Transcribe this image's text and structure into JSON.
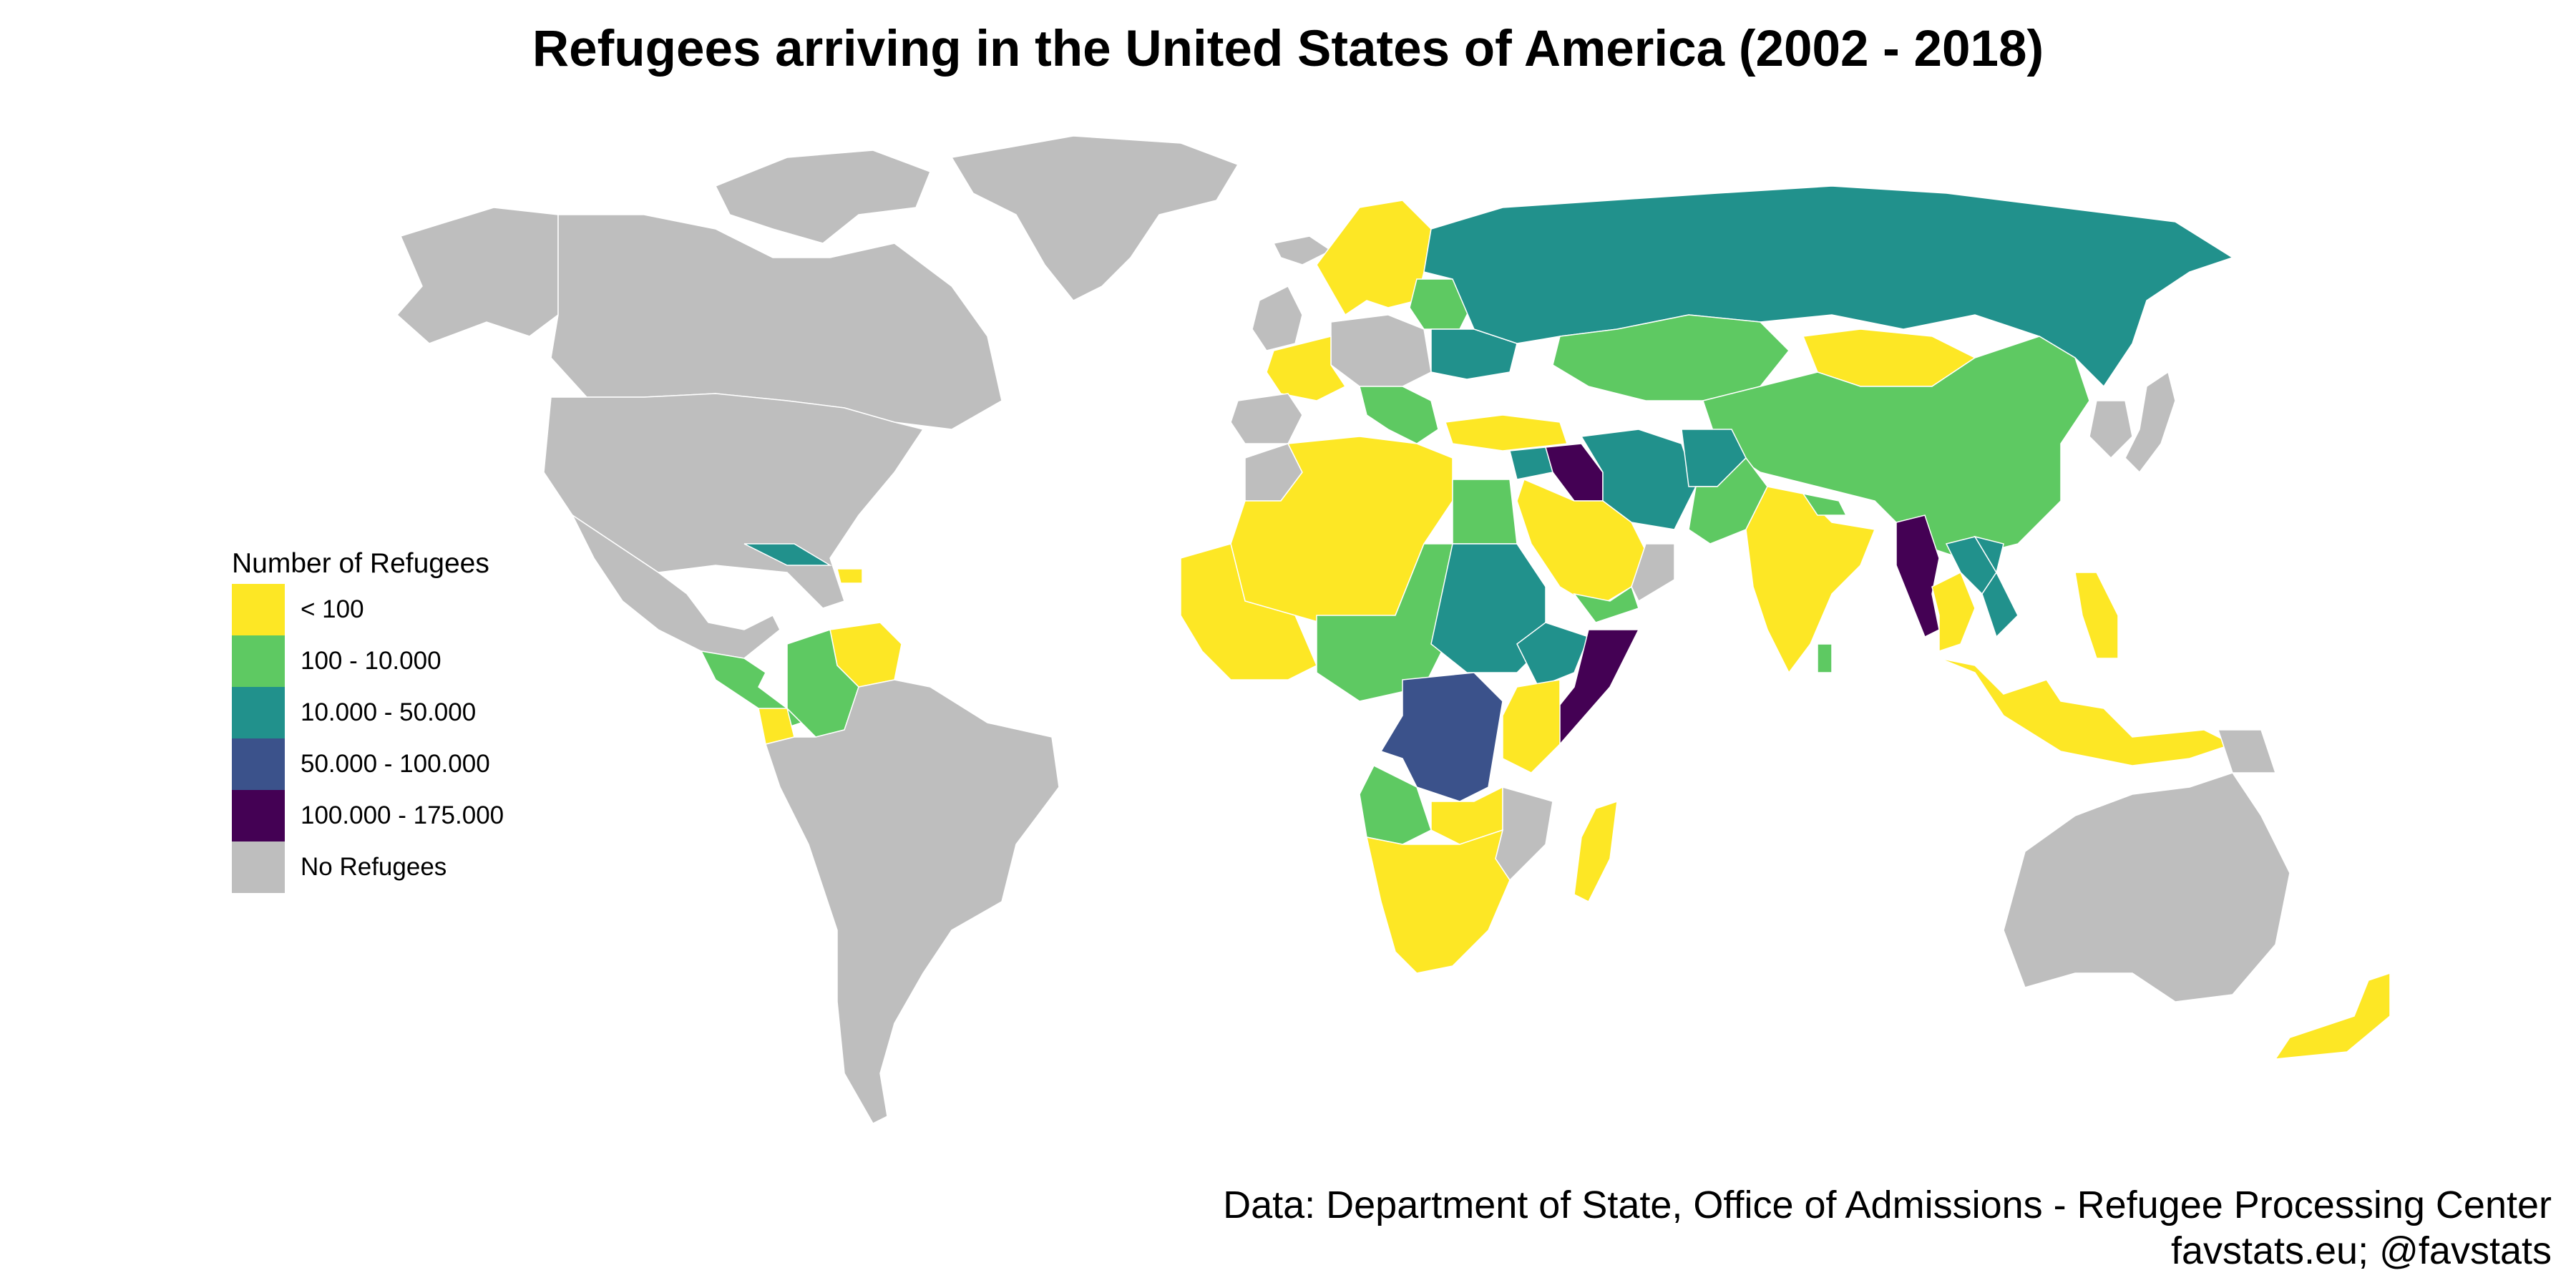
{
  "title": "Refugees arriving in the United States of America (2002 - 2018)",
  "legend": {
    "title": "Number of Refugees",
    "items": [
      {
        "label": "< 100",
        "color": "#fde725"
      },
      {
        "label": "100 - 10.000",
        "color": "#5ec962"
      },
      {
        "label": "10.000 - 50.000",
        "color": "#21918c"
      },
      {
        "label": "50.000 - 100.000",
        "color": "#3b528b"
      },
      {
        "label": "100.000 - 175.000",
        "color": "#440154"
      },
      {
        "label": "No Refugees",
        "color": "#bebebe"
      }
    ]
  },
  "caption": {
    "line1": "Data: Department of State, Office of Admissions - Refugee Processing Center",
    "line2": "favstats.eu; @favstats"
  },
  "regions": [
    {
      "name": "greenland",
      "class": "No Refugees"
    },
    {
      "name": "alaska",
      "class": "No Refugees"
    },
    {
      "name": "canada",
      "class": "No Refugees"
    },
    {
      "name": "arctic-islands",
      "class": "No Refugees"
    },
    {
      "name": "united-states",
      "class": "No Refugees"
    },
    {
      "name": "mexico",
      "class": "No Refugees"
    },
    {
      "name": "central-america",
      "class": "100 - 10.000"
    },
    {
      "name": "cuba",
      "class": "10.000 - 50.000"
    },
    {
      "name": "haiti",
      "class": "< 100"
    },
    {
      "name": "venezuela",
      "class": "< 100"
    },
    {
      "name": "colombia",
      "class": "100 - 10.000"
    },
    {
      "name": "ecuador",
      "class": "< 100"
    },
    {
      "name": "south-america",
      "class": "No Refugees"
    },
    {
      "name": "iceland",
      "class": "No Refugees"
    },
    {
      "name": "united-kingdom",
      "class": "No Refugees"
    },
    {
      "name": "scandinavia",
      "class": "< 100"
    },
    {
      "name": "baltics-belarus",
      "class": "100 - 10.000"
    },
    {
      "name": "western-europe",
      "class": "< 100"
    },
    {
      "name": "central-europe",
      "class": "No Refugees"
    },
    {
      "name": "iberia",
      "class": "No Refugees"
    },
    {
      "name": "balkans",
      "class": "100 - 10.000"
    },
    {
      "name": "ukraine",
      "class": "10.000 - 50.000"
    },
    {
      "name": "russia",
      "class": "10.000 - 50.000"
    },
    {
      "name": "kazakhstan",
      "class": "100 - 10.000"
    },
    {
      "name": "mongolia",
      "class": "< 100"
    },
    {
      "name": "china",
      "class": "100 - 10.000"
    },
    {
      "name": "turkey",
      "class": "< 100"
    },
    {
      "name": "syria",
      "class": "10.000 - 50.000"
    },
    {
      "name": "iraq",
      "class": "100.000 - 175.000"
    },
    {
      "name": "iran",
      "class": "10.000 - 50.000"
    },
    {
      "name": "afghanistan",
      "class": "10.000 - 50.000"
    },
    {
      "name": "pakistan",
      "class": "100 - 10.000"
    },
    {
      "name": "arabia",
      "class": "< 100"
    },
    {
      "name": "yemen",
      "class": "100 - 10.000"
    },
    {
      "name": "oman",
      "class": "No Refugees"
    },
    {
      "name": "india",
      "class": "< 100"
    },
    {
      "name": "nepal",
      "class": "100 - 10.000"
    },
    {
      "name": "sri-lanka",
      "class": "100 - 10.000"
    },
    {
      "name": "myanmar",
      "class": "100.000 - 175.000"
    },
    {
      "name": "laos",
      "class": "10.000 - 50.000"
    },
    {
      "name": "vietnam",
      "class": "10.000 - 50.000"
    },
    {
      "name": "thailand",
      "class": "< 100"
    },
    {
      "name": "korea",
      "class": "No Refugees"
    },
    {
      "name": "japan",
      "class": "No Refugees"
    },
    {
      "name": "philippines",
      "class": "< 100"
    },
    {
      "name": "indonesia",
      "class": "< 100"
    },
    {
      "name": "papua-new-guinea",
      "class": "No Refugees"
    },
    {
      "name": "australia",
      "class": "No Refugees"
    },
    {
      "name": "new-zealand",
      "class": "< 100"
    },
    {
      "name": "north-africa",
      "class": "< 100"
    },
    {
      "name": "morocco",
      "class": "No Refugees"
    },
    {
      "name": "egypt",
      "class": "100 - 10.000"
    },
    {
      "name": "sahel",
      "class": "100 - 10.000"
    },
    {
      "name": "west-africa",
      "class": "< 100"
    },
    {
      "name": "sudan",
      "class": "10.000 - 50.000"
    },
    {
      "name": "ethiopia",
      "class": "10.000 - 50.000"
    },
    {
      "name": "somalia",
      "class": "100.000 - 175.000"
    },
    {
      "name": "kenya",
      "class": "< 100"
    },
    {
      "name": "dr-congo",
      "class": "50.000 - 100.000"
    },
    {
      "name": "angola",
      "class": "100 - 10.000"
    },
    {
      "name": "zambia",
      "class": "< 100"
    },
    {
      "name": "mozambique",
      "class": "No Refugees"
    },
    {
      "name": "southern-africa",
      "class": "< 100"
    },
    {
      "name": "madagascar",
      "class": "< 100"
    }
  ]
}
